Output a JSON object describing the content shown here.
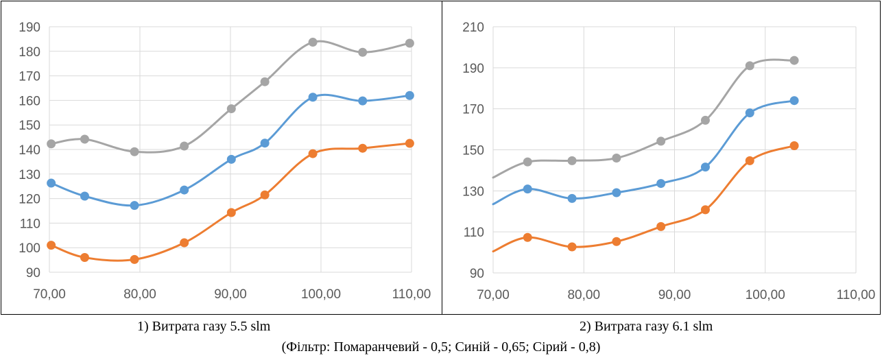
{
  "captions": {
    "chart1": "1) Витрата газу 5.5 slm",
    "chart2": "2) Витрата газу 6.1 slm",
    "filter": "(Фільтр: Помаранчевий - 0,5; Синій - 0,65; Сірий - 0,8)"
  },
  "colors": {
    "orange": "#ED7D31",
    "blue": "#5B9BD5",
    "gray": "#A5A5A5",
    "grid": "#D9D9D9",
    "axis_text": "#595959"
  },
  "chart_data": [
    {
      "type": "scatter",
      "smooth": true,
      "title": "",
      "xlabel": "",
      "ylabel": "",
      "xlim": [
        70,
        110
      ],
      "ylim": [
        90,
        190
      ],
      "xticks": [
        70,
        80,
        90,
        100,
        110
      ],
      "xtick_labels": [
        "70,00",
        "80,00",
        "90,00",
        "100,00",
        "110,00"
      ],
      "yticks": [
        90,
        100,
        110,
        120,
        130,
        140,
        150,
        160,
        170,
        180,
        190
      ],
      "grid": true,
      "legend": "none",
      "series": [
        {
          "color": "#ED7D31",
          "points": [
            [
              70.2,
              101
            ],
            [
              73.9,
              96
            ],
            [
              79.4,
              95.2
            ],
            [
              84.9,
              102
            ],
            [
              90.1,
              114.3
            ],
            [
              93.8,
              121.5
            ],
            [
              99.1,
              138.3
            ],
            [
              104.6,
              140.5
            ],
            [
              109.8,
              142.5
            ]
          ]
        },
        {
          "color": "#5B9BD5",
          "points": [
            [
              70.2,
              126.3
            ],
            [
              73.9,
              121
            ],
            [
              79.4,
              117.2
            ],
            [
              84.9,
              123.5
            ],
            [
              90.1,
              136
            ],
            [
              93.8,
              142.6
            ],
            [
              99.1,
              161.3
            ],
            [
              104.6,
              159.8
            ],
            [
              109.8,
              162
            ]
          ]
        },
        {
          "color": "#A5A5A5",
          "points": [
            [
              70.2,
              142.3
            ],
            [
              73.9,
              144.2
            ],
            [
              79.4,
              139.1
            ],
            [
              84.9,
              141.4
            ],
            [
              90.1,
              156.6
            ],
            [
              93.8,
              167.6
            ],
            [
              99.1,
              183.7
            ],
            [
              104.6,
              179.6
            ],
            [
              109.8,
              183.3
            ]
          ]
        }
      ]
    },
    {
      "type": "scatter",
      "smooth": true,
      "title": "",
      "xlabel": "",
      "ylabel": "",
      "xlim": [
        70,
        110
      ],
      "ylim": [
        90,
        210
      ],
      "xticks": [
        70,
        80,
        90,
        100,
        110
      ],
      "xtick_labels": [
        "70,00",
        "80,00",
        "90,00",
        "100,00",
        "110,00"
      ],
      "yticks": [
        90,
        110,
        130,
        150,
        170,
        190,
        210
      ],
      "grid": true,
      "legend": "none",
      "series": [
        {
          "color": "#ED7D31",
          "start": [
            70,
            100.5
          ],
          "points": [
            [
              73.8,
              107.3
            ],
            [
              78.7,
              102.7
            ],
            [
              83.6,
              105.3
            ],
            [
              88.5,
              112.6
            ],
            [
              93.4,
              120.8
            ],
            [
              98.3,
              144.7
            ],
            [
              103.2,
              152
            ]
          ]
        },
        {
          "color": "#5B9BD5",
          "start": [
            70,
            123.5
          ],
          "points": [
            [
              73.8,
              130.9
            ],
            [
              78.7,
              126.3
            ],
            [
              83.6,
              129.1
            ],
            [
              88.5,
              133.6
            ],
            [
              93.4,
              141.6
            ],
            [
              98.3,
              168
            ],
            [
              103.2,
              174
            ]
          ]
        },
        {
          "color": "#A5A5A5",
          "start": [
            70,
            136.5
          ],
          "points": [
            [
              73.8,
              144.1
            ],
            [
              78.7,
              144.7
            ],
            [
              83.6,
              146
            ],
            [
              88.5,
              154.2
            ],
            [
              93.4,
              164.4
            ],
            [
              98.3,
              191
            ],
            [
              103.2,
              193.6
            ]
          ]
        }
      ]
    }
  ]
}
